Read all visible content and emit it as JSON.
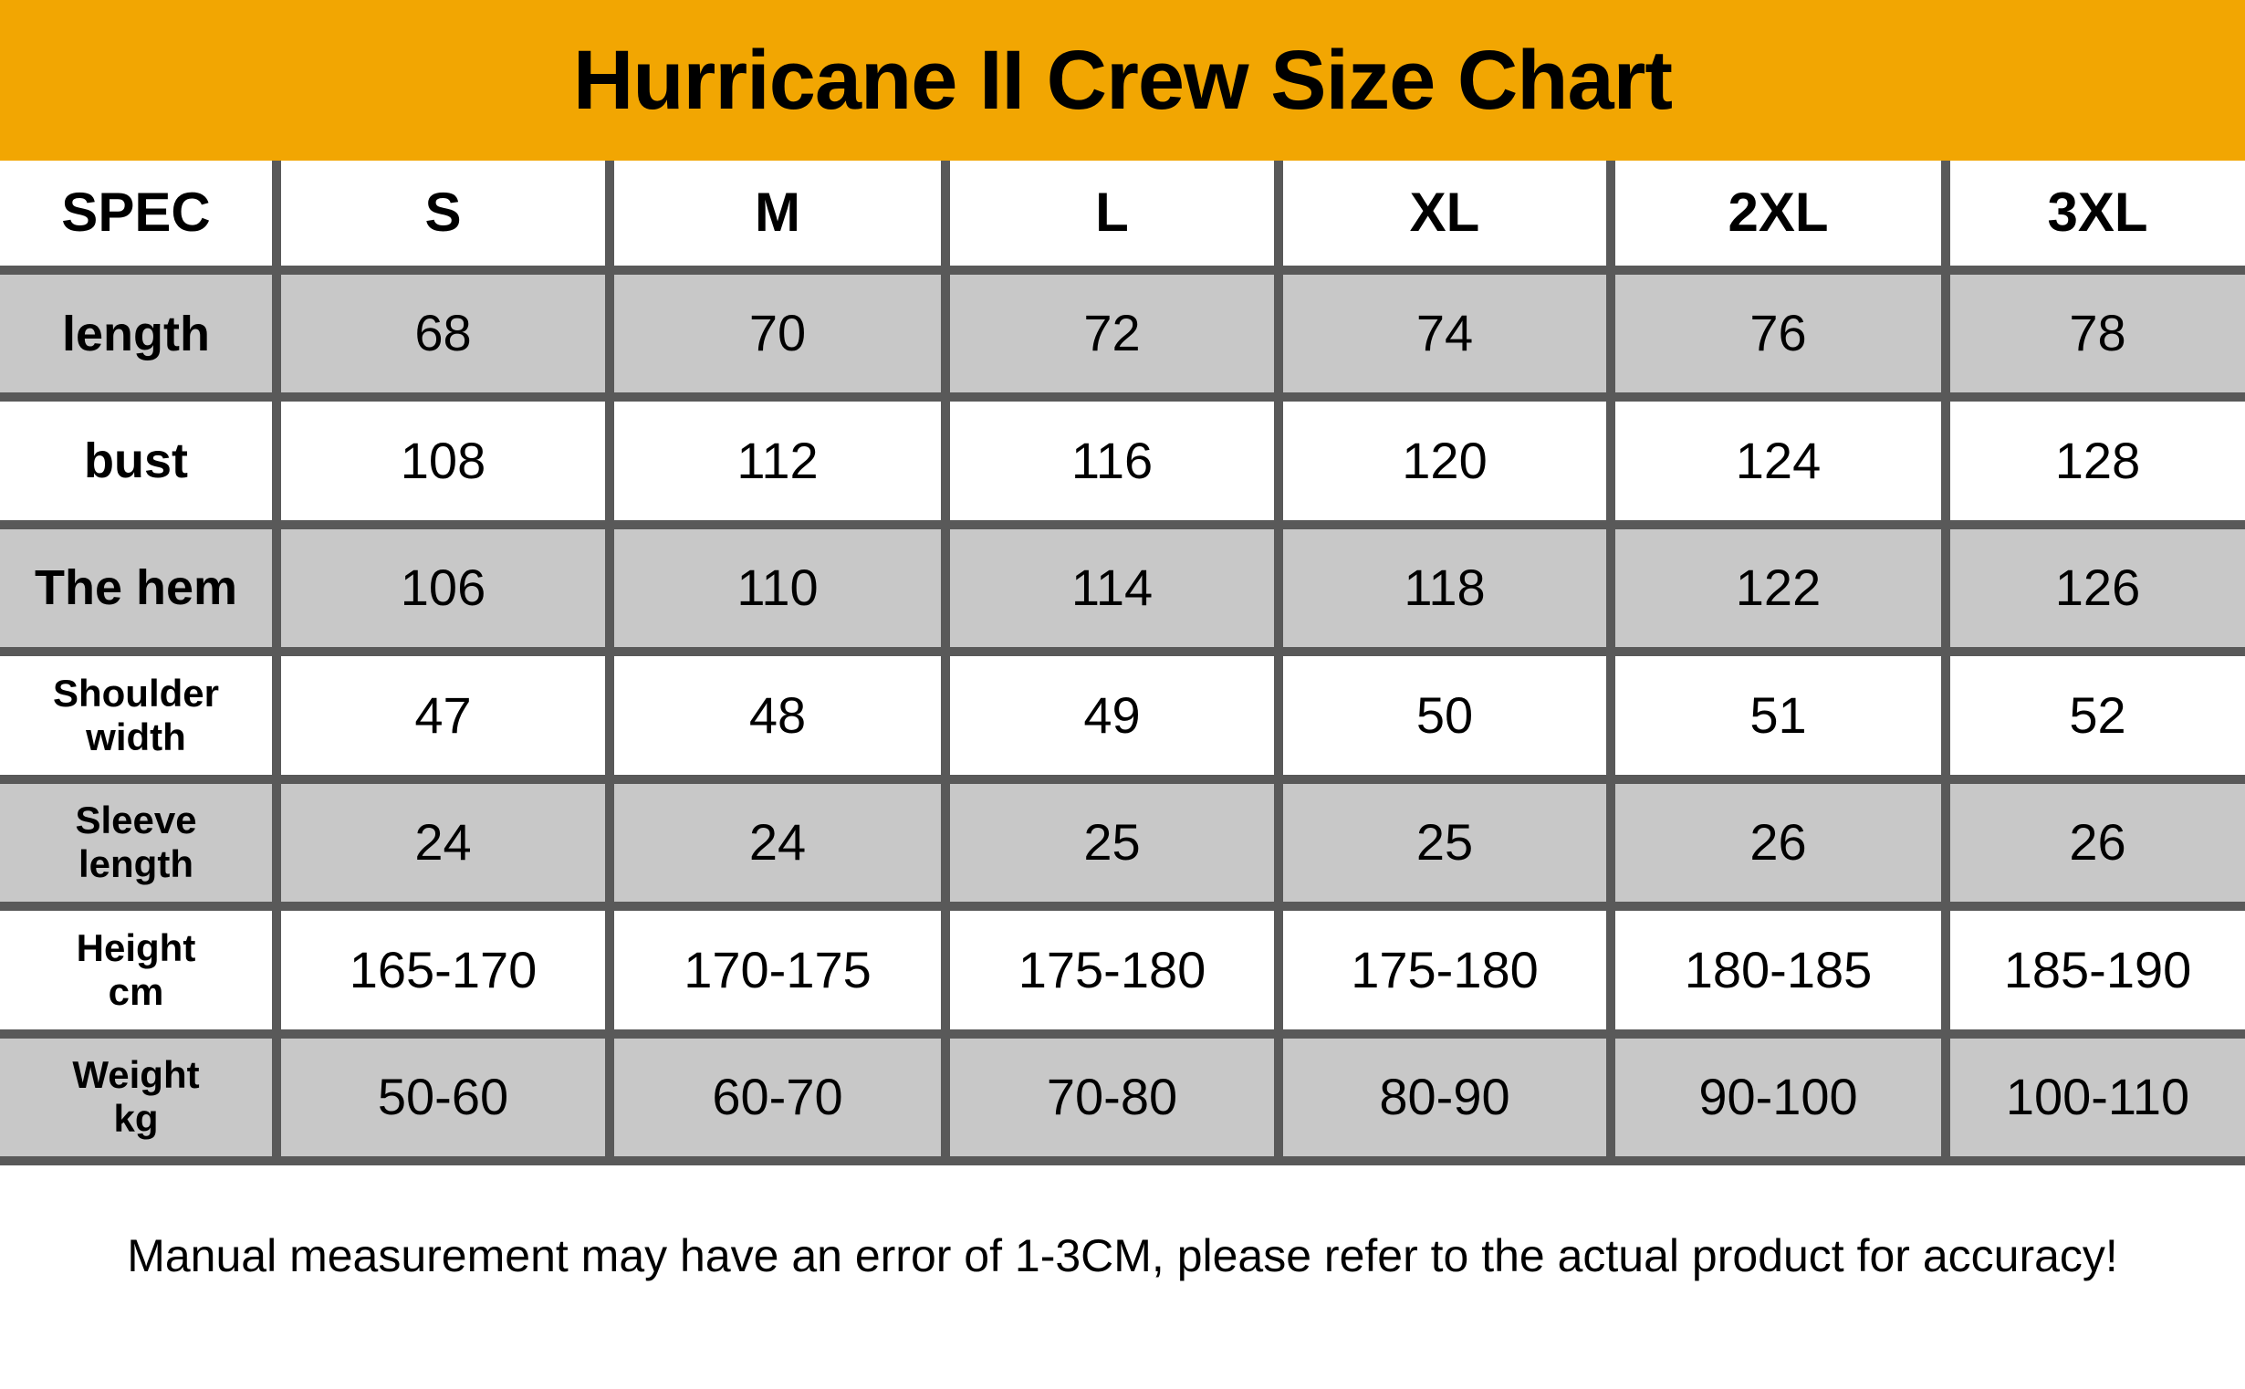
{
  "title": "Hurricane II Crew Size Chart",
  "colors": {
    "banner_orange": "#F2A602",
    "alt_row_gray": "#C8C8C8",
    "grid_border": "#595959",
    "text": "#000000"
  },
  "table": {
    "header": [
      "SPEC",
      "S",
      "M",
      "L",
      "XL",
      "2XL",
      "3XL"
    ],
    "rows": [
      {
        "label_line1": "length",
        "label_line2": "",
        "values": [
          "68",
          "70",
          "72",
          "74",
          "76",
          "78"
        ]
      },
      {
        "label_line1": "bust",
        "label_line2": "",
        "values": [
          "108",
          "112",
          "116",
          "120",
          "124",
          "128"
        ]
      },
      {
        "label_line1": "The hem",
        "label_line2": "",
        "values": [
          "106",
          "110",
          "114",
          "118",
          "122",
          "126"
        ]
      },
      {
        "label_line1": "Shoulder",
        "label_line2": "width",
        "values": [
          "47",
          "48",
          "49",
          "50",
          "51",
          "52"
        ]
      },
      {
        "label_line1": "Sleeve",
        "label_line2": "length",
        "values": [
          "24",
          "24",
          "25",
          "25",
          "26",
          "26"
        ]
      },
      {
        "label_line1": "Height",
        "label_line2": "cm",
        "values": [
          "165-170",
          "170-175",
          "175-180",
          "175-180",
          "180-185",
          "185-190"
        ]
      },
      {
        "label_line1": "Weight",
        "label_line2": "kg",
        "values": [
          "50-60",
          "60-70",
          "70-80",
          "80-90",
          "90-100",
          "100-110"
        ]
      }
    ]
  },
  "note": "Manual measurement may have an error of 1-3CM, please refer to the actual product for accuracy!",
  "chart_data": {
    "type": "table",
    "title": "Hurricane II Crew Size Chart",
    "columns": [
      "SPEC",
      "S",
      "M",
      "L",
      "XL",
      "2XL",
      "3XL"
    ],
    "rows": [
      [
        "length",
        68,
        70,
        72,
        74,
        76,
        78
      ],
      [
        "bust",
        108,
        112,
        116,
        120,
        124,
        128
      ],
      [
        "The hem",
        106,
        110,
        114,
        118,
        122,
        126
      ],
      [
        "Shoulder width",
        47,
        48,
        49,
        50,
        51,
        52
      ],
      [
        "Sleeve length",
        24,
        24,
        25,
        25,
        26,
        26
      ],
      [
        "Height cm",
        "165-170",
        "170-175",
        "175-180",
        "175-180",
        "180-185",
        "185-190"
      ],
      [
        "Weight kg",
        "50-60",
        "60-70",
        "70-80",
        "80-90",
        "90-100",
        "100-110"
      ]
    ],
    "footnote": "Manual measurement may have an error of 1-3CM, please refer to the actual product for accuracy!"
  }
}
